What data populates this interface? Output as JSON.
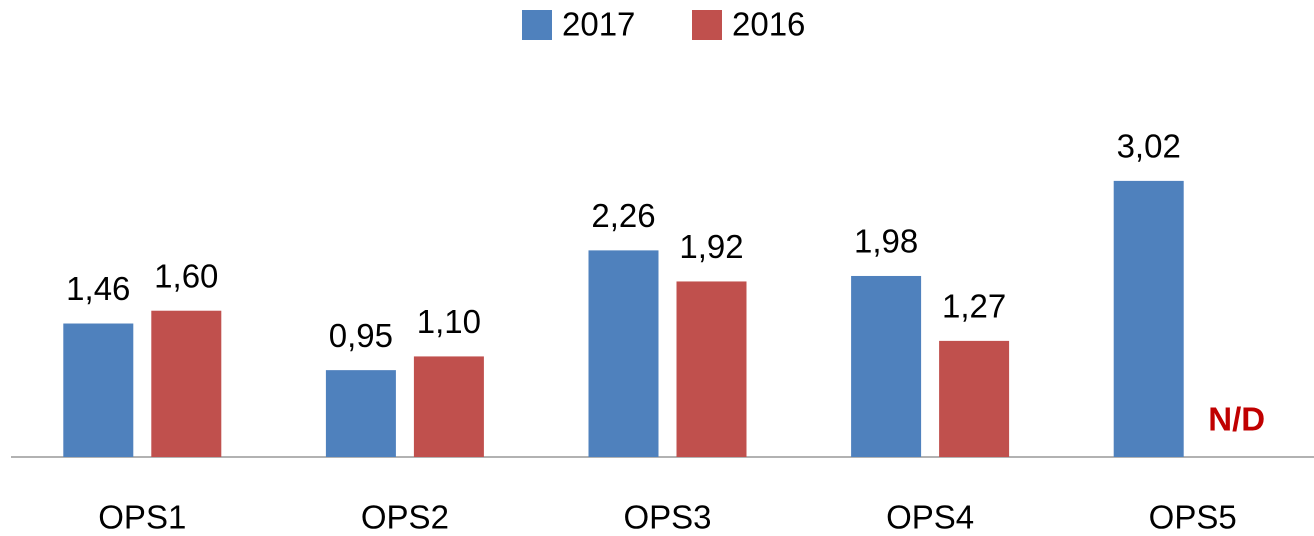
{
  "chart_data": {
    "type": "bar",
    "categories": [
      "OPS1",
      "OPS2",
      "OPS3",
      "OPS4",
      "OPS5"
    ],
    "series": [
      {
        "name": "2017",
        "color": "#4f81bd",
        "values": [
          1.46,
          0.95,
          2.26,
          1.98,
          3.02
        ],
        "value_labels": [
          "1,46",
          "0,95",
          "2,26",
          "1,98",
          "3,02"
        ]
      },
      {
        "name": "2016",
        "color": "#c0504d",
        "values": [
          1.6,
          1.1,
          1.92,
          1.27,
          null
        ],
        "value_labels": [
          "1,60",
          "1,10",
          "1,92",
          "1,27",
          null
        ]
      }
    ],
    "annotation": "N/D",
    "ylim": [
      0,
      3.5
    ],
    "legend": "top"
  }
}
